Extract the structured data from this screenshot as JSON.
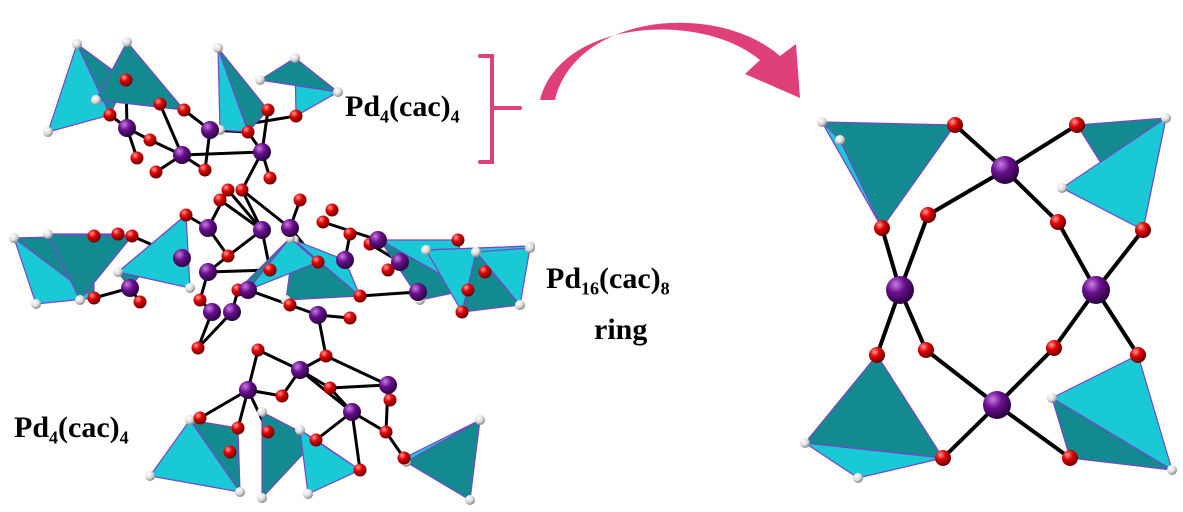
{
  "labels": {
    "top_cluster": {
      "base": "Pd",
      "sub1": "4",
      "mid": "(cac)",
      "sub2": "4"
    },
    "bottom_cluster": {
      "base": "Pd",
      "sub1": "4",
      "mid": "(cac)",
      "sub2": "4"
    },
    "ring": {
      "base": "Pd",
      "sub1": "16",
      "mid": "(cac)",
      "sub2": "8",
      "line2": "ring"
    }
  },
  "colors": {
    "tetra_light": "#19c9d6",
    "tetra_dark": "#138a8f",
    "tetra_edge": "#7a44c9",
    "pd_atom": "#6a0f8e",
    "o_atom": "#e00000",
    "h_atom": "#e6e6e6",
    "bracket_arrow": "#e0407a"
  }
}
